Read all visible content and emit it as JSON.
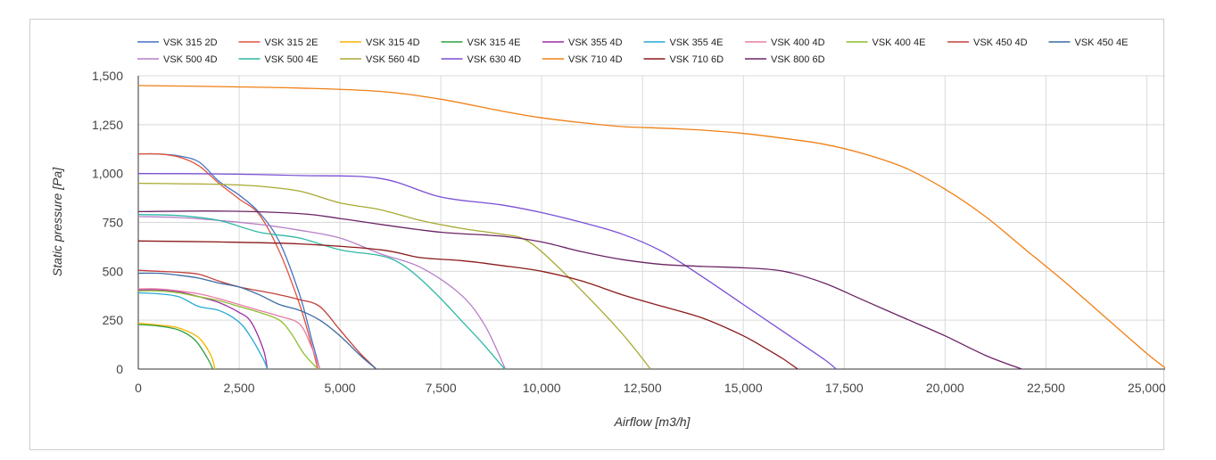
{
  "chart_data": {
    "type": "line",
    "xlabel": "Airflow [m3/h]",
    "ylabel": "Static pressure [Pa]",
    "xlim": [
      0,
      25500
    ],
    "ylim": [
      0,
      1500
    ],
    "x_ticks": [
      0,
      2500,
      5000,
      7500,
      10000,
      12500,
      15000,
      17500,
      20000,
      22500,
      25000
    ],
    "x_tick_labels": [
      "0",
      "2,500",
      "5,000",
      "7,500",
      "10,000",
      "12,500",
      "15,000",
      "17,500",
      "20,000",
      "22,500",
      "25,000"
    ],
    "y_ticks": [
      0,
      250,
      500,
      750,
      1000,
      1250,
      1500
    ],
    "y_tick_labels": [
      "0",
      "250",
      "500",
      "750",
      "1,000",
      "1,250",
      "1,500"
    ],
    "grid": true,
    "legend_position": "top",
    "series": [
      {
        "name": "VSK 315 2D",
        "color": "#4472c4",
        "x": [
          0,
          500,
          1000,
          1500,
          2000,
          2500,
          3000,
          3500,
          4000,
          4300,
          4500
        ],
        "y": [
          1100,
          1100,
          1090,
          1060,
          960,
          890,
          800,
          650,
          380,
          150,
          0
        ]
      },
      {
        "name": "VSK 315 2E",
        "color": "#e0533b",
        "x": [
          0,
          500,
          1000,
          1500,
          2000,
          2500,
          3000,
          3500,
          4000,
          4300,
          4450
        ],
        "y": [
          1100,
          1100,
          1085,
          1040,
          950,
          870,
          790,
          600,
          330,
          120,
          0
        ]
      },
      {
        "name": "VSK 315 4D",
        "color": "#f5b400",
        "x": [
          0,
          500,
          1000,
          1500,
          1800,
          1900
        ],
        "y": [
          235,
          225,
          210,
          160,
          70,
          0
        ]
      },
      {
        "name": "VSK 315 4E",
        "color": "#2e9e3f",
        "x": [
          0,
          500,
          1000,
          1400,
          1700,
          1850
        ],
        "y": [
          228,
          220,
          200,
          150,
          60,
          0
        ]
      },
      {
        "name": "VSK 355 4D",
        "color": "#9c2ca6",
        "x": [
          0,
          500,
          1000,
          1500,
          2000,
          2500,
          2800,
          3100,
          3200
        ],
        "y": [
          405,
          405,
          395,
          370,
          340,
          290,
          240,
          100,
          0
        ]
      },
      {
        "name": "VSK 355 4E",
        "color": "#26a8d6",
        "x": [
          0,
          500,
          1000,
          1500,
          2000,
          2500,
          2800,
          3100,
          3200
        ],
        "y": [
          390,
          385,
          370,
          320,
          300,
          240,
          160,
          50,
          0
        ]
      },
      {
        "name": "VSK 400 4D",
        "color": "#e87ca6",
        "x": [
          0,
          500,
          1000,
          1500,
          2000,
          2500,
          3000,
          3500,
          4000,
          4300,
          4500
        ],
        "y": [
          410,
          410,
          400,
          385,
          360,
          330,
          300,
          270,
          230,
          110,
          0
        ]
      },
      {
        "name": "VSK 400 4E",
        "color": "#8cbf2e",
        "x": [
          0,
          500,
          1000,
          1500,
          2000,
          2500,
          3000,
          3500,
          3800,
          4100,
          4450
        ],
        "y": [
          400,
          400,
          390,
          370,
          350,
          320,
          290,
          250,
          180,
          80,
          0
        ]
      },
      {
        "name": "VSK 450 4D",
        "color": "#c2403b",
        "x": [
          0,
          500,
          1000,
          1500,
          2000,
          2500,
          3000,
          3500,
          4000,
          4500,
          5000,
          5500,
          5900
        ],
        "y": [
          505,
          500,
          495,
          485,
          450,
          420,
          400,
          380,
          355,
          320,
          200,
          80,
          0
        ]
      },
      {
        "name": "VSK 450 4E",
        "color": "#3b6aa0",
        "x": [
          0,
          500,
          1000,
          1500,
          2000,
          2500,
          3000,
          3500,
          4000,
          4500,
          5000,
          5500,
          5900
        ],
        "y": [
          490,
          490,
          480,
          465,
          440,
          420,
          380,
          330,
          300,
          250,
          170,
          70,
          0
        ]
      },
      {
        "name": "VSK 500 4D",
        "color": "#b77fc9",
        "x": [
          0,
          1000,
          2000,
          3000,
          4000,
          5000,
          6000,
          7000,
          8000,
          8600,
          9100
        ],
        "y": [
          780,
          775,
          760,
          740,
          710,
          670,
          590,
          520,
          380,
          220,
          0
        ]
      },
      {
        "name": "VSK 500 4E",
        "color": "#2eb8a4",
        "x": [
          0,
          1000,
          2000,
          3000,
          4000,
          5000,
          6000,
          6500,
          7000,
          7500,
          8000,
          8500,
          9000,
          9100
        ],
        "y": [
          790,
          785,
          760,
          700,
          670,
          610,
          580,
          540,
          460,
          360,
          250,
          140,
          20,
          0
        ]
      },
      {
        "name": "VSK 560 4D",
        "color": "#a8a832",
        "x": [
          0,
          1000,
          2000,
          3000,
          4000,
          5000,
          6000,
          7000,
          8000,
          9000,
          9500,
          10000,
          11000,
          12000,
          12700
        ],
        "y": [
          950,
          948,
          945,
          935,
          910,
          850,
          815,
          760,
          720,
          690,
          670,
          600,
          400,
          180,
          0
        ]
      },
      {
        "name": "VSK 630 4D",
        "color": "#7a4fd6",
        "x": [
          0,
          2000,
          4000,
          6000,
          7500,
          9000,
          10000,
          11000,
          12000,
          13000,
          14000,
          15000,
          16000,
          17000,
          17300
        ],
        "y": [
          1000,
          998,
          990,
          975,
          880,
          840,
          800,
          750,
          690,
          600,
          470,
          330,
          190,
          50,
          0
        ]
      },
      {
        "name": "VSK 710 4D",
        "color": "#f07f14",
        "x": [
          0,
          2000,
          4000,
          6000,
          7500,
          9000,
          10000,
          11000,
          12000,
          13000,
          14000,
          15000,
          16000,
          17000,
          18000,
          19000,
          20000,
          21000,
          22000,
          23000,
          24000,
          25000,
          25500
        ],
        "y": [
          1450,
          1445,
          1437,
          1420,
          1380,
          1320,
          1285,
          1260,
          1240,
          1232,
          1222,
          1205,
          1180,
          1150,
          1100,
          1030,
          920,
          780,
          610,
          440,
          260,
          80,
          0
        ]
      },
      {
        "name": "VSK 710 6D",
        "color": "#8b1a1a",
        "x": [
          0,
          2000,
          4000,
          6000,
          7000,
          8000,
          9000,
          10000,
          11000,
          12000,
          13000,
          14000,
          15000,
          15600,
          16000,
          16350
        ],
        "y": [
          655,
          650,
          640,
          610,
          570,
          555,
          530,
          500,
          450,
          380,
          320,
          260,
          170,
          100,
          50,
          0
        ]
      },
      {
        "name": "VSK 800 6D",
        "color": "#6b2466",
        "x": [
          0,
          2000,
          4000,
          5000,
          6000,
          7500,
          9000,
          10000,
          11000,
          12000,
          13000,
          14000,
          15000,
          16000,
          17000,
          18000,
          19000,
          20000,
          21000,
          21900
        ],
        "y": [
          805,
          808,
          795,
          770,
          740,
          700,
          680,
          650,
          600,
          560,
          535,
          525,
          518,
          500,
          440,
          350,
          260,
          170,
          70,
          0
        ]
      }
    ]
  }
}
